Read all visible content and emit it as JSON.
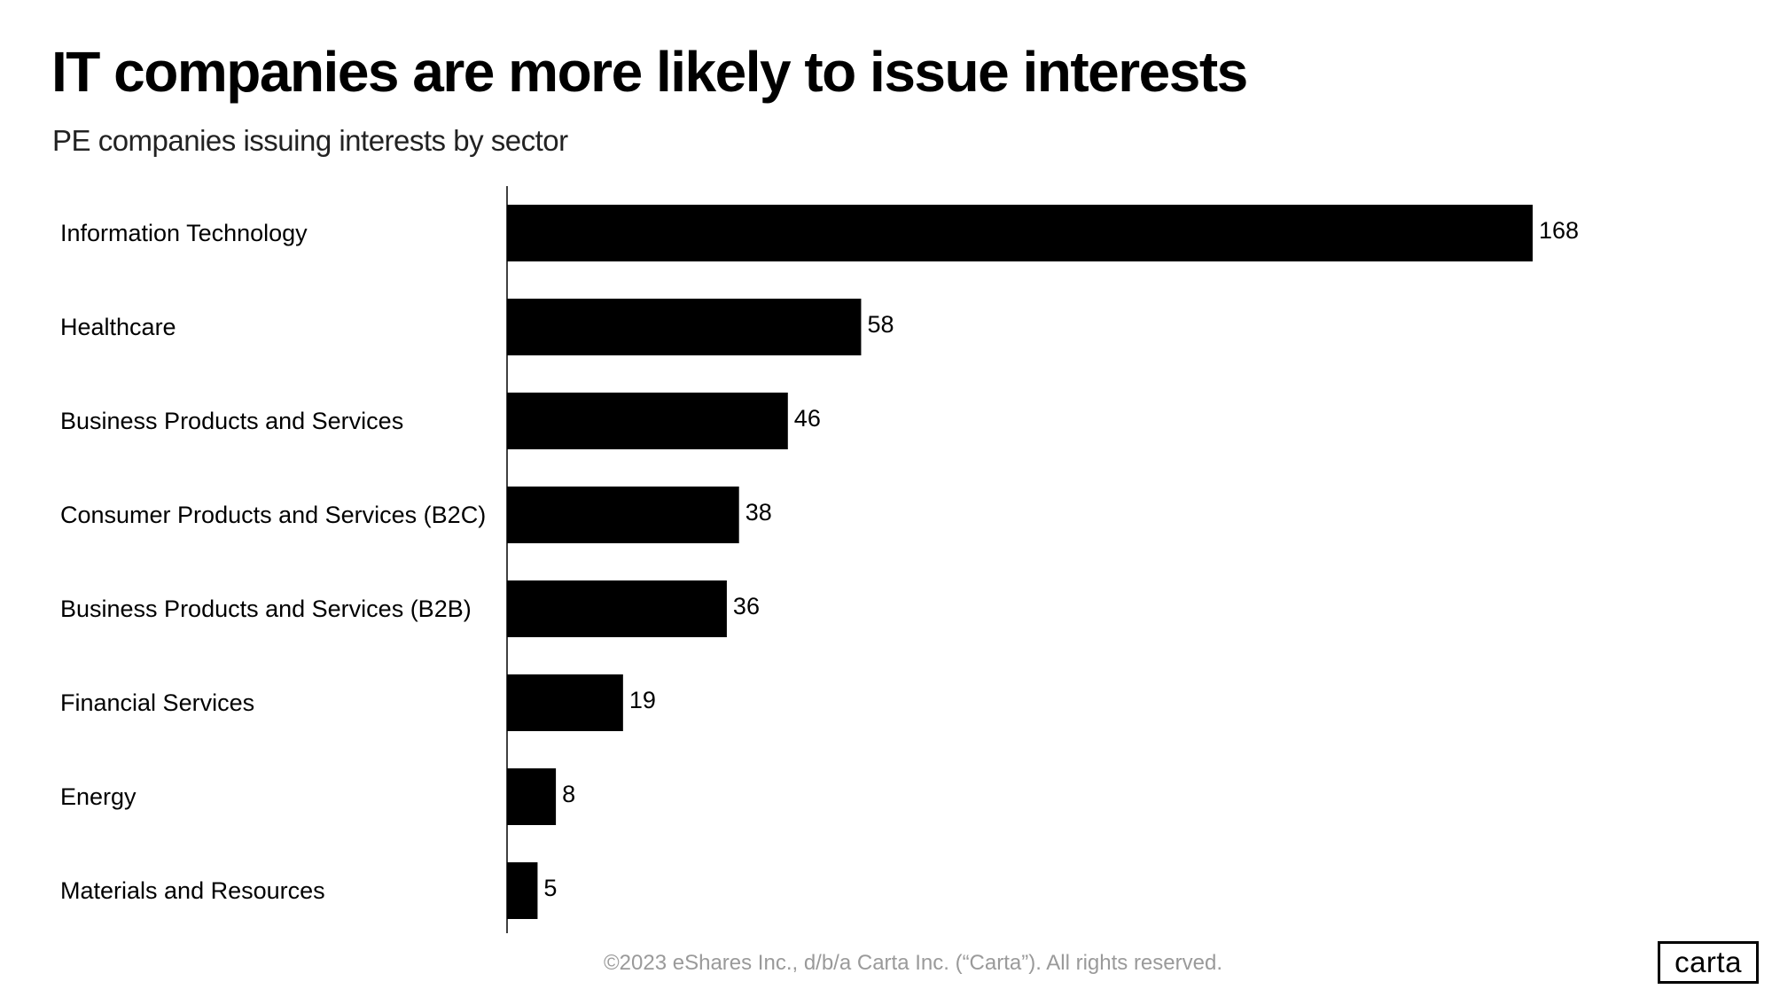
{
  "chart_data": {
    "type": "bar",
    "orientation": "horizontal",
    "title": "IT companies are more likely to issue interests",
    "subtitle": "PE companies issuing interests by sector",
    "categories": [
      "Information Technology",
      "Healthcare",
      "Business Products and Services",
      "Consumer Products and Services (B2C)",
      "Business Products and Services (B2B)",
      "Financial Services",
      "Energy",
      "Materials and Resources"
    ],
    "values": [
      168,
      58,
      46,
      38,
      36,
      19,
      8,
      5
    ],
    "xlim": [
      0,
      168
    ],
    "grid": false,
    "bar_color": "#000000",
    "data_labels": true
  },
  "footer": "©2023 eShares Inc., d/b/a Carta Inc. (“Carta”). All rights reserved.",
  "logo": "carta"
}
